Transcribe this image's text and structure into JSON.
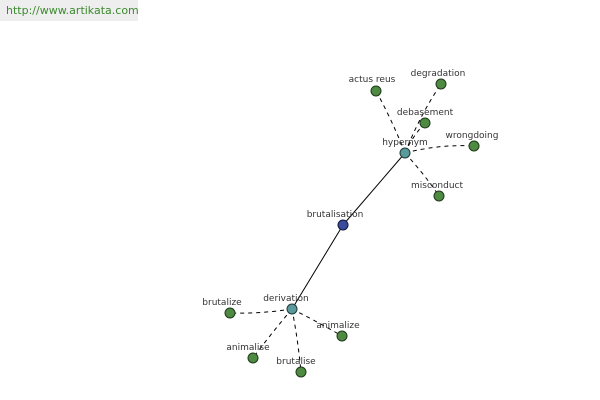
{
  "header": {
    "url": "http://www.artikata.com"
  },
  "nodes": [
    {
      "label": "brutalisation"
    },
    {
      "label": "hypernym"
    },
    {
      "label": "derivation"
    },
    {
      "label": "actus reus"
    },
    {
      "label": "degradation"
    },
    {
      "label": "debasement"
    },
    {
      "label": "wrongdoing"
    },
    {
      "label": "misconduct"
    },
    {
      "label": "brutalize"
    },
    {
      "label": "animalize"
    },
    {
      "label": "animalise"
    },
    {
      "label": "brutalise"
    }
  ]
}
